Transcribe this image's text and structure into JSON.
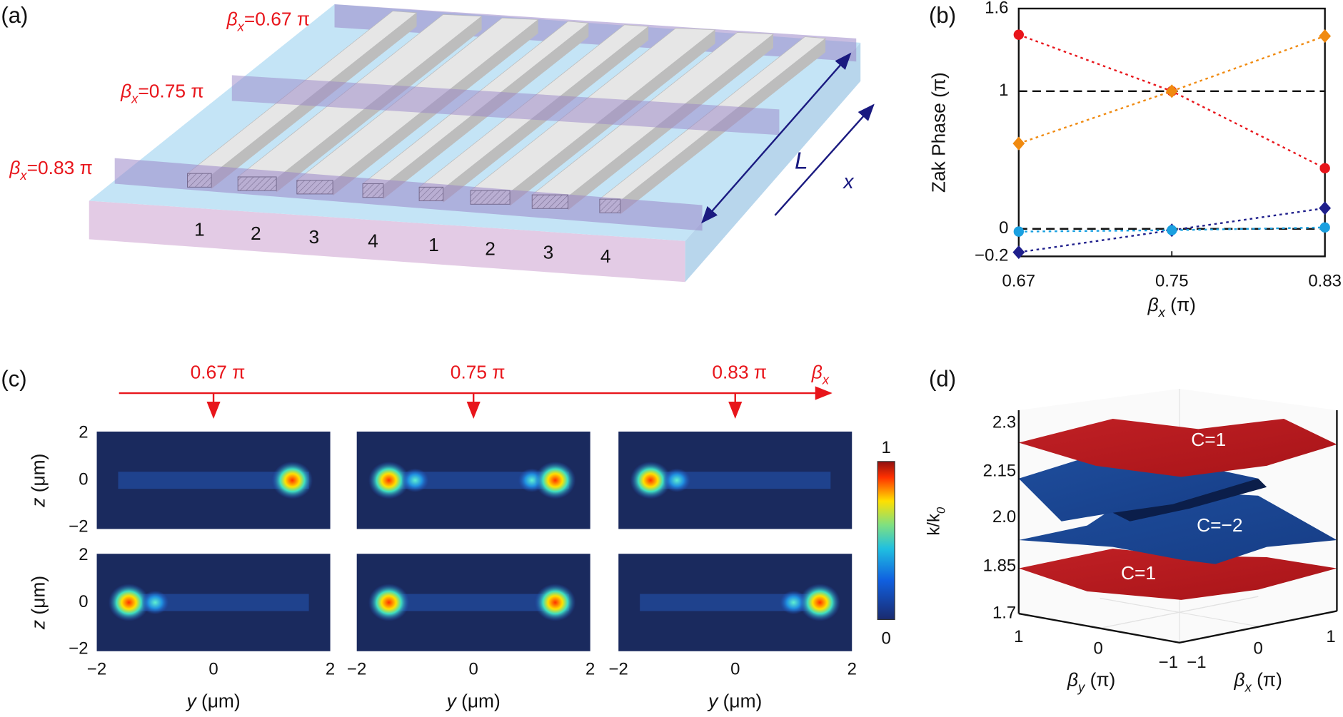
{
  "panel_labels": [
    "(a)",
    "(b)",
    "(c)",
    "(d)"
  ],
  "device": {
    "beta_labels": [
      {
        "symbol": "β",
        "sub": "x",
        "text": "=0.67 π"
      },
      {
        "symbol": "β",
        "sub": "x",
        "text": "=0.75 π"
      },
      {
        "symbol": "β",
        "sub": "x",
        "text": "=0.83 π"
      }
    ],
    "waveguide_numbers": [
      "1",
      "2",
      "3",
      "4",
      "1",
      "2",
      "3",
      "4"
    ],
    "length_label": "L",
    "axis_label": "x"
  },
  "chart_data": {
    "type": "line",
    "ylabel": "Zak Phase (π)",
    "xlabel": {
      "symbol": "β",
      "sub": "x",
      "text": " (π)"
    },
    "x": [
      0.67,
      0.75,
      0.83
    ],
    "xlim": [
      0.67,
      0.83
    ],
    "xticks": [
      0.67,
      0.75,
      0.83
    ],
    "ylim": [
      -0.2,
      1.6
    ],
    "yticks": [
      {
        "value": -0.2,
        "label": "−0.2"
      },
      0,
      1,
      1.6
    ],
    "hlines": [
      1,
      0
    ],
    "series": [
      {
        "color": "#e8151b",
        "marker": "circle",
        "values": [
          1.41,
          1,
          0.44
        ]
      },
      {
        "color": "#f08a10",
        "marker": "diamond",
        "values": [
          0.62,
          1,
          1.4
        ]
      },
      {
        "color": "#1f1f8c",
        "marker": "diamond",
        "values": [
          -0.17,
          -0.01,
          0.15
        ]
      },
      {
        "color": "#1aa0e0",
        "marker": "circle",
        "values": [
          -0.02,
          -0.01,
          0.01
        ]
      }
    ]
  },
  "mode_profiles": {
    "beta_values": [
      "0.67 π",
      "0.75 π",
      "0.83 π"
    ],
    "beta_axis": {
      "symbol": "β",
      "sub": "x"
    },
    "z_ticks": [
      "2",
      "0",
      "−2"
    ],
    "y_ticks": [
      "−2",
      "0",
      "2"
    ],
    "z_label": {
      "symbol": "z",
      "text": " (μm)"
    },
    "y_label": {
      "symbol": "y",
      "text": " (μm)"
    },
    "colorbar_ticks": [
      "1",
      "0"
    ]
  },
  "band_structure": {
    "energy_ticks": [
      "2.3",
      "2.15",
      "2.0",
      "1.85",
      "1.7"
    ],
    "energy_label": {
      "text": "k/k",
      "sub": "0"
    },
    "chern_labels": [
      "C=1",
      "C=−2",
      "C=1"
    ],
    "beta_y_ticks": [
      "1",
      "0",
      "−1"
    ],
    "beta_x_ticks": [
      "−1",
      "0",
      "1"
    ],
    "beta_y_label": {
      "symbol": "β",
      "sub": "y",
      "text": " (π)"
    },
    "beta_x_label": {
      "symbol": "β",
      "sub": "x",
      "text": " (π)"
    }
  }
}
